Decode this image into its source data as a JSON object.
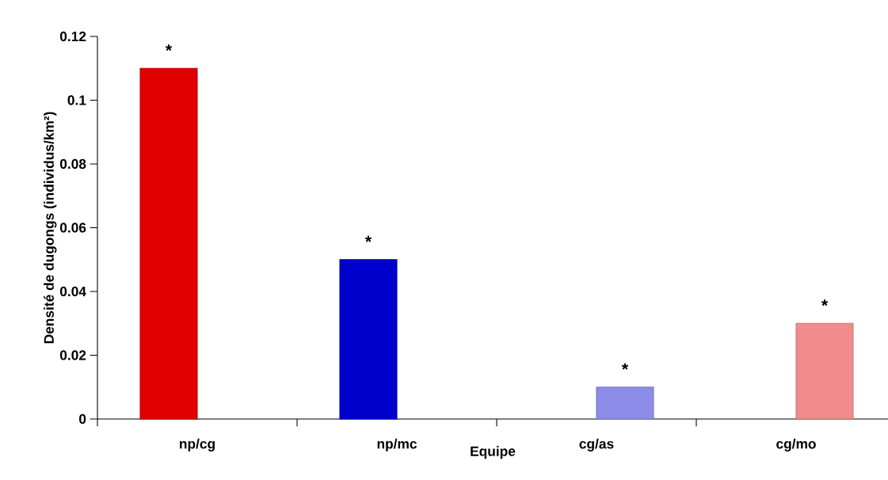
{
  "chart_data": {
    "type": "bar",
    "xlabel": "Equipe",
    "ylabel": "Densité de dugongs (individus/km²)",
    "categories": [
      "np/cg",
      "np/mc",
      "cg/as",
      "cg/mo"
    ],
    "series": [
      {
        "colors": [
          "#e00000",
          "#0000cc",
          null,
          null
        ],
        "values": [
          0.11,
          0.05,
          null,
          null
        ]
      },
      {
        "colors": [
          null,
          null,
          "#8c8ce8",
          "#f08c8c"
        ],
        "values": [
          null,
          null,
          0.01,
          0.03
        ]
      }
    ],
    "ylim": [
      0,
      0.12
    ],
    "yticks": [
      0,
      0.02,
      0.04,
      0.06,
      0.08,
      0.1,
      0.12
    ],
    "annotations": [
      {
        "text": "*",
        "x": "np/cg",
        "y": 0.11
      },
      {
        "text": "*",
        "x": "np/mc",
        "y": 0.05
      },
      {
        "text": "*",
        "x": "cg/as",
        "y": 0.01
      },
      {
        "text": "*",
        "x": "cg/mo",
        "y": 0.03
      }
    ]
  }
}
